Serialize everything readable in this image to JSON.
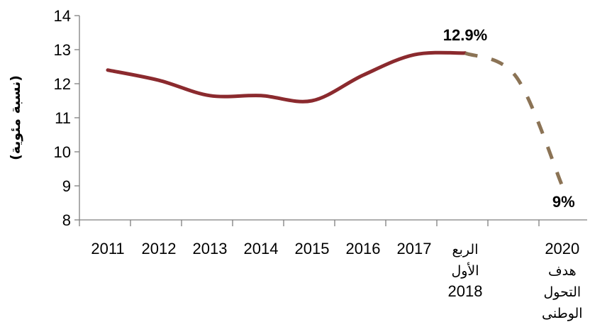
{
  "chart_data": {
    "type": "line",
    "ylabel": "(نسبة مئوية)",
    "ylim": [
      8,
      14
    ],
    "yticks": [
      8,
      9,
      10,
      11,
      12,
      13,
      14
    ],
    "categories": [
      [
        "2011"
      ],
      [
        "2012"
      ],
      [
        "2013"
      ],
      [
        "2014"
      ],
      [
        "2015"
      ],
      [
        "2016"
      ],
      [
        "2017"
      ],
      [
        "الربع",
        "الأول",
        "2018"
      ],
      [
        "2020",
        "هدف",
        "التحول",
        "الوطنى"
      ]
    ],
    "category_positions": [
      0,
      1,
      2,
      3,
      4,
      5,
      6,
      7,
      8.9
    ],
    "series": [
      {
        "style": "solid",
        "color": "#8B2A2E",
        "x": [
          0,
          1,
          2,
          3,
          4,
          5,
          6,
          7
        ],
        "y": [
          12.4,
          12.1,
          11.65,
          11.65,
          11.5,
          12.25,
          12.85,
          12.9
        ]
      },
      {
        "style": "dashed",
        "color": "#8B7355",
        "x": [
          7,
          8,
          8.9
        ],
        "y": [
          12.9,
          12.2,
          9.0
        ]
      }
    ],
    "data_labels": [
      {
        "text": "12.9%",
        "x": 7,
        "y": 12.9
      },
      {
        "text": "9%",
        "x": 8.9,
        "y": 9.0
      }
    ],
    "grid": false,
    "legend": "none"
  }
}
